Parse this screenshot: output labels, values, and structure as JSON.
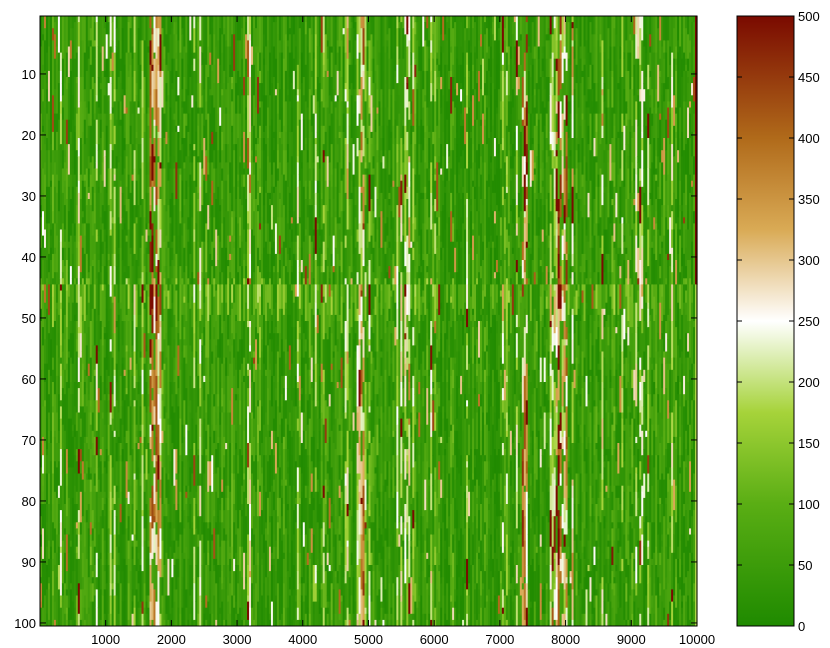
{
  "chart_data": {
    "type": "heatmap",
    "title": "",
    "xlabel": "",
    "ylabel": "",
    "x_range": [
      1,
      10000
    ],
    "y_range": [
      1,
      100
    ],
    "x_ticks": [
      1000,
      2000,
      3000,
      4000,
      5000,
      6000,
      7000,
      8000,
      9000,
      10000
    ],
    "y_ticks": [
      10,
      20,
      30,
      40,
      50,
      60,
      70,
      80,
      90,
      100
    ],
    "y_reversed": true,
    "grid": false,
    "colorbar": {
      "position": "right",
      "range": [
        0,
        500
      ],
      "ticks": [
        0,
        50,
        100,
        150,
        200,
        250,
        300,
        350,
        400,
        450,
        500
      ],
      "colormap": [
        {
          "value": 0,
          "color": "#1f8a00"
        },
        {
          "value": 100,
          "color": "#5aae14"
        },
        {
          "value": 175,
          "color": "#a6d33a"
        },
        {
          "value": 250,
          "color": "#ffffff"
        },
        {
          "value": 325,
          "color": "#d9aa55"
        },
        {
          "value": 400,
          "color": "#b06a1a"
        },
        {
          "value": 500,
          "color": "#7a0a00"
        }
      ]
    },
    "description_values": {
      "typical_cell_range": [
        0,
        500
      ],
      "dominant_level": 40,
      "last_column_rows_1_to_44": 500,
      "last_column_rows_45_to_100": 180,
      "high_value_columns_approx": [
        1700,
        1800,
        4900,
        7400,
        7900,
        8000
      ]
    }
  }
}
